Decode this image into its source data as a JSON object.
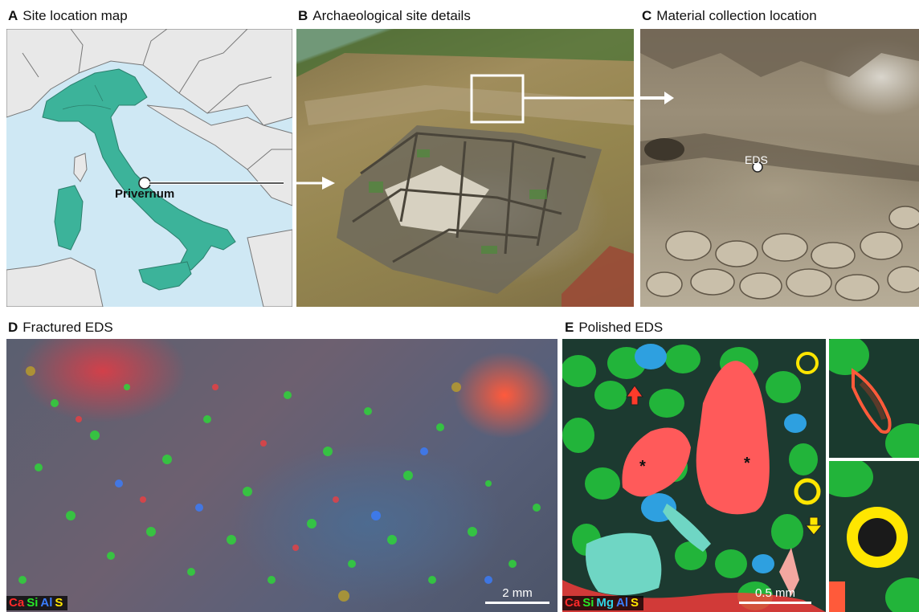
{
  "panels": {
    "a": {
      "letter": "A",
      "title": "Site location map",
      "marker_label": "Privernum"
    },
    "b": {
      "letter": "B",
      "title": "Archaeological site details"
    },
    "c": {
      "letter": "C",
      "title": "Material collection location",
      "marker_label": "EDS"
    },
    "d": {
      "letter": "D",
      "title": "Fractured EDS",
      "scale_label": "2 mm",
      "legend": [
        "Ca",
        "Si",
        "Al",
        "S"
      ]
    },
    "e": {
      "letter": "E",
      "title": "Polished EDS",
      "scale_label": "0.5 mm",
      "legend": [
        "Ca",
        "Si",
        "Mg",
        "Al",
        "S"
      ],
      "asterisk": "*"
    }
  },
  "colors": {
    "Ca": "#ff2a2a",
    "Si": "#27e627",
    "Mg": "#2fd6e6",
    "Al": "#3a7dff",
    "S": "#ffe600",
    "italy": "#3cb39a",
    "sea": "#cfe8f4",
    "land": "#e8e8e8"
  }
}
